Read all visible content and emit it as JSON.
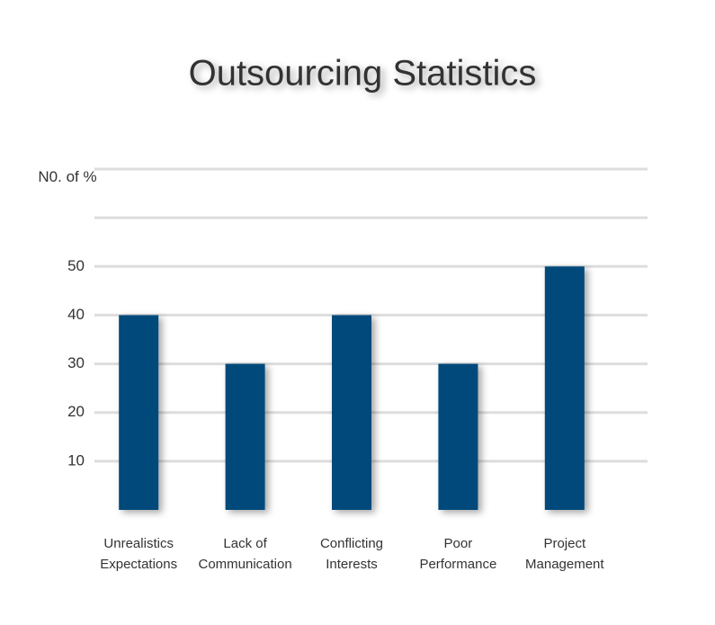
{
  "chart_data": {
    "type": "bar",
    "title": "Outsourcing Statistics",
    "y_label": "N0. of %",
    "categories": [
      "Unrealistics Expectations",
      "Lack of Communication",
      "Conflicting Interests",
      "Poor Performance",
      "Project Management"
    ],
    "values": [
      40,
      30,
      40,
      30,
      50
    ],
    "color": "#044a7a",
    "ylim": [
      0,
      70
    ],
    "yticks": [
      10,
      20,
      30,
      40,
      50
    ],
    "grid": true
  }
}
